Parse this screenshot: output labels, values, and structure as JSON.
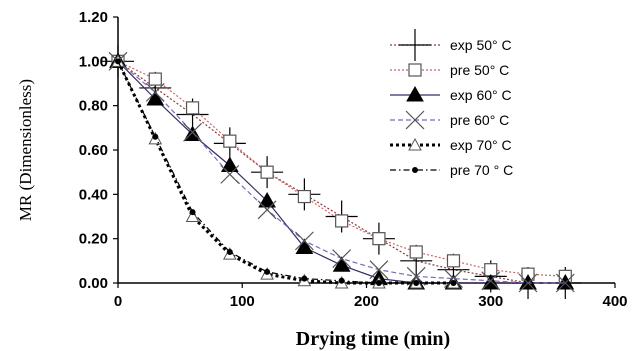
{
  "chart_data": {
    "type": "line",
    "title": "",
    "xlabel": "Drying time (min)",
    "ylabel": "MR (Dimensionless)",
    "xlim": [
      0,
      400
    ],
    "ylim": [
      0,
      1.2
    ],
    "x_ticks": [
      "0",
      "100",
      "200",
      "300",
      "400"
    ],
    "y_ticks": [
      "0.00",
      "0.20",
      "0.40",
      "0.60",
      "0.80",
      "1.00",
      "1.20"
    ],
    "grid": false,
    "legend_position": "top-right",
    "series": [
      {
        "name": "exp 50° C",
        "marker": "plus",
        "line": "dotted",
        "color": "#8b3a3a",
        "x": [
          0,
          30,
          60,
          90,
          120,
          150,
          180,
          210,
          240,
          270,
          300,
          330,
          360
        ],
        "y": [
          1.0,
          0.88,
          0.76,
          0.63,
          0.5,
          0.4,
          0.3,
          0.2,
          0.1,
          0.06,
          0.03,
          0.0,
          0.0
        ]
      },
      {
        "name": "pre 50° C",
        "marker": "square-open",
        "line": "dotted",
        "color": "#cc6666",
        "x": [
          0,
          30,
          60,
          90,
          120,
          150,
          180,
          210,
          240,
          270,
          300,
          330,
          360
        ],
        "y": [
          1.0,
          0.92,
          0.79,
          0.64,
          0.5,
          0.39,
          0.28,
          0.2,
          0.14,
          0.1,
          0.06,
          0.04,
          0.03
        ]
      },
      {
        "name": "exp 60° C",
        "marker": "triangle-filled",
        "line": "solid",
        "color": "#3a2a66",
        "x": [
          0,
          30,
          60,
          90,
          120,
          150,
          180,
          210,
          240,
          270,
          300,
          330,
          360
        ],
        "y": [
          1.0,
          0.83,
          0.67,
          0.53,
          0.37,
          0.16,
          0.08,
          0.02,
          0.0,
          0.0,
          0.0,
          0.0,
          0.0
        ]
      },
      {
        "name": "pre 60° C",
        "marker": "x",
        "line": "dashed",
        "color": "#7a6bb8",
        "x": [
          0,
          30,
          60,
          90,
          120,
          150,
          180,
          210,
          240,
          270,
          300,
          330,
          360
        ],
        "y": [
          1.0,
          0.86,
          0.68,
          0.49,
          0.33,
          0.19,
          0.11,
          0.06,
          0.03,
          0.02,
          0.01,
          0.0,
          0.0
        ]
      },
      {
        "name": "exp 70° C",
        "marker": "triangle-open",
        "line": "dotted-bold",
        "color": "#000000",
        "x": [
          0,
          30,
          60,
          90,
          120,
          150,
          180,
          210,
          240,
          270
        ],
        "y": [
          1.0,
          0.65,
          0.3,
          0.13,
          0.04,
          0.01,
          0.0,
          0.0,
          0.0,
          0.0
        ]
      },
      {
        "name": "pre 70 ° C",
        "marker": "dot",
        "line": "dashdot",
        "color": "#000000",
        "x": [
          0,
          30,
          60,
          90,
          120,
          150,
          180,
          210,
          240,
          270
        ],
        "y": [
          1.0,
          0.66,
          0.32,
          0.14,
          0.05,
          0.02,
          0.01,
          0.0,
          0.0,
          0.0
        ]
      }
    ]
  }
}
